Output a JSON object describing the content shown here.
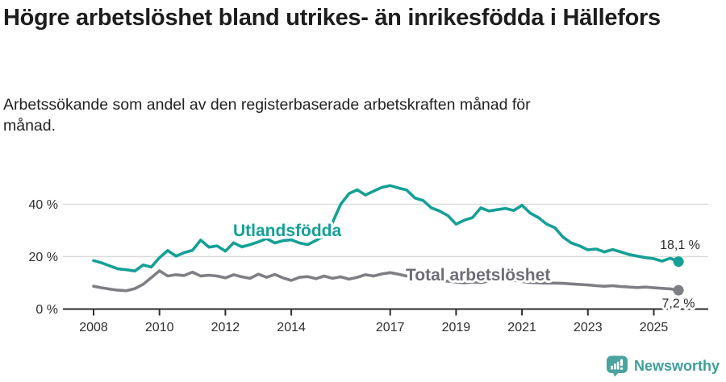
{
  "chart_data": {
    "type": "line",
    "title": "Högre arbetslöshet bland utrikes- än inrikesfödda i Hällefors",
    "subtitle": "Arbetssökande som andel av den registerbaserade arbetskraften månad för månad.",
    "xlabel": "",
    "ylabel": "",
    "xlim": [
      2008,
      2025.75
    ],
    "ylim": [
      0,
      48
    ],
    "grid": "horizontal",
    "legend": "inline-series-labels",
    "x_unit": "year (quarterly estimates of monthly data)",
    "x": [
      2008,
      2008.25,
      2008.5,
      2008.75,
      2009,
      2009.25,
      2009.5,
      2009.75,
      2010,
      2010.25,
      2010.5,
      2010.75,
      2011,
      2011.25,
      2011.5,
      2011.75,
      2012,
      2012.25,
      2012.5,
      2012.75,
      2013,
      2013.25,
      2013.5,
      2013.75,
      2014,
      2014.25,
      2014.5,
      2014.75,
      2015,
      2015.25,
      2015.5,
      2015.75,
      2016,
      2016.25,
      2016.5,
      2016.75,
      2017,
      2017.25,
      2017.5,
      2017.75,
      2018,
      2018.25,
      2018.5,
      2018.75,
      2019,
      2019.25,
      2019.5,
      2019.75,
      2020,
      2020.25,
      2020.5,
      2020.75,
      2021,
      2021.25,
      2021.5,
      2021.75,
      2022,
      2022.25,
      2022.5,
      2022.75,
      2023,
      2023.25,
      2023.5,
      2023.75,
      2024,
      2024.25,
      2024.5,
      2024.75,
      2025,
      2025.25,
      2025.5,
      2025.75
    ],
    "series": [
      {
        "name": "Utlandsfödda",
        "color": "#14a096",
        "label_color": "#14a096",
        "end_label": "18,1 %",
        "end_value": 18.1,
        "values": [
          18.5,
          17.6,
          16.4,
          15.3,
          15.0,
          14.5,
          16.8,
          16.0,
          19.6,
          22.3,
          20.2,
          21.5,
          22.4,
          26.3,
          23.6,
          24.1,
          22.1,
          25.3,
          23.7,
          24.6,
          25.6,
          26.9,
          25.2,
          26.1,
          26.4,
          25.2,
          24.6,
          26.2,
          28.0,
          33.0,
          40.0,
          44.0,
          45.5,
          43.5,
          45.0,
          46.4,
          47.1,
          46.2,
          45.4,
          42.4,
          41.4,
          38.6,
          37.4,
          35.7,
          32.4,
          33.9,
          34.9,
          38.6,
          37.4,
          37.9,
          38.4,
          37.6,
          39.6,
          36.6,
          34.9,
          32.4,
          31.0,
          27.4,
          25.2,
          24.1,
          22.6,
          22.9,
          21.8,
          22.7,
          21.8,
          20.8,
          20.2,
          19.6,
          19.2,
          18.3,
          19.4,
          18.1
        ]
      },
      {
        "name": "Total arbetslöshet",
        "color": "#7e7e85",
        "label_color": "#6d6d75",
        "end_label": "7,2 %",
        "end_value": 7.2,
        "values": [
          8.7,
          8.1,
          7.6,
          7.2,
          7.0,
          7.8,
          9.4,
          12.0,
          14.6,
          12.6,
          13.1,
          12.8,
          14.1,
          12.6,
          12.9,
          12.6,
          11.9,
          13.1,
          12.3,
          11.7,
          13.3,
          12.1,
          13.2,
          11.9,
          10.9,
          12.1,
          12.4,
          11.6,
          12.6,
          11.7,
          12.3,
          11.4,
          12.1,
          13.1,
          12.6,
          13.4,
          13.9,
          13.3,
          12.6,
          12.1,
          12.3,
          11.6,
          11.0,
          10.6,
          10.3,
          10.0,
          10.3,
          10.1,
          10.6,
          11.1,
          11.3,
          10.9,
          10.5,
          10.1,
          10.0,
          9.9,
          9.9,
          9.8,
          9.6,
          9.4,
          9.2,
          8.9,
          8.7,
          8.9,
          8.6,
          8.4,
          8.2,
          8.4,
          8.1,
          7.9,
          7.7,
          7.2
        ]
      }
    ],
    "x_ticks": {
      "values": [
        2008,
        2010,
        2012,
        2014,
        2017,
        2019,
        2021,
        2023,
        2025
      ],
      "labels": [
        "2008",
        "2010",
        "2012",
        "2014",
        "2017",
        "2019",
        "2021",
        "2023",
        "2025"
      ]
    },
    "y_ticks": {
      "values": [
        0,
        20,
        40
      ],
      "labels": [
        "0 %",
        "20 %",
        "40 %"
      ]
    }
  },
  "footer": {
    "brand": "Newsworthy"
  },
  "colors": {
    "accent_teal": "#14a096",
    "series_gray": "#7e7e85",
    "gridline": "#d9d9d9",
    "axis": "#2e2e2e",
    "brand_teal": "#3f9e99"
  }
}
